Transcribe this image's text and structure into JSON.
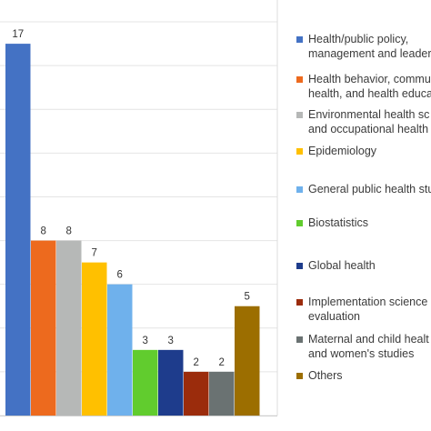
{
  "chart_data": {
    "type": "bar",
    "categories": [
      "Health/public policy, management and leadership",
      "Health behavior, community health, and health education",
      "Environmental health sciences and occupational health",
      "Epidemiology",
      "General public health studies",
      "Biostatistics",
      "Global health",
      "Implementation science and evaluation",
      "Maternal and child health and women's studies",
      "Others"
    ],
    "values": [
      17,
      8,
      8,
      7,
      6,
      3,
      3,
      2,
      2,
      5
    ],
    "data_labels": [
      "17",
      "8",
      "8",
      "7",
      "6",
      "3",
      "3",
      "2",
      "2",
      "5"
    ],
    "colors": [
      "#4472C4",
      "#ED6A1E",
      "#B6B8B7",
      "#FFC000",
      "#6FB1EC",
      "#61CC2E",
      "#1E3C8C",
      "#9B2C0C",
      "#6A7272",
      "#9C6E00"
    ],
    "ylim": [
      0,
      19
    ],
    "grid": true,
    "legend_position": "right"
  },
  "legend": [
    {
      "lines": [
        "Health/public policy,",
        "management and leader"
      ],
      "color": "#4472C4"
    },
    {
      "lines": [
        "Health behavior, commu",
        "health, and health educa"
      ],
      "color": "#ED6A1E"
    },
    {
      "lines": [
        "Environmental health sc",
        "and occupational health"
      ],
      "color": "#B6B8B7"
    },
    {
      "lines": [
        "Epidemiology"
      ],
      "color": "#FFC000"
    },
    {
      "lines": [
        "General public health stu"
      ],
      "color": "#6FB1EC"
    },
    {
      "lines": [
        "Biostatistics"
      ],
      "color": "#61CC2E"
    },
    {
      "lines": [
        "Global health"
      ],
      "color": "#1E3C8C"
    },
    {
      "lines": [
        "Implementation science",
        "evaluation"
      ],
      "color": "#9B2C0C"
    },
    {
      "lines": [
        "Maternal and child healt",
        "and women's studies"
      ],
      "color": "#6A7272"
    },
    {
      "lines": [
        "Others"
      ],
      "color": "#9C6E00"
    }
  ]
}
